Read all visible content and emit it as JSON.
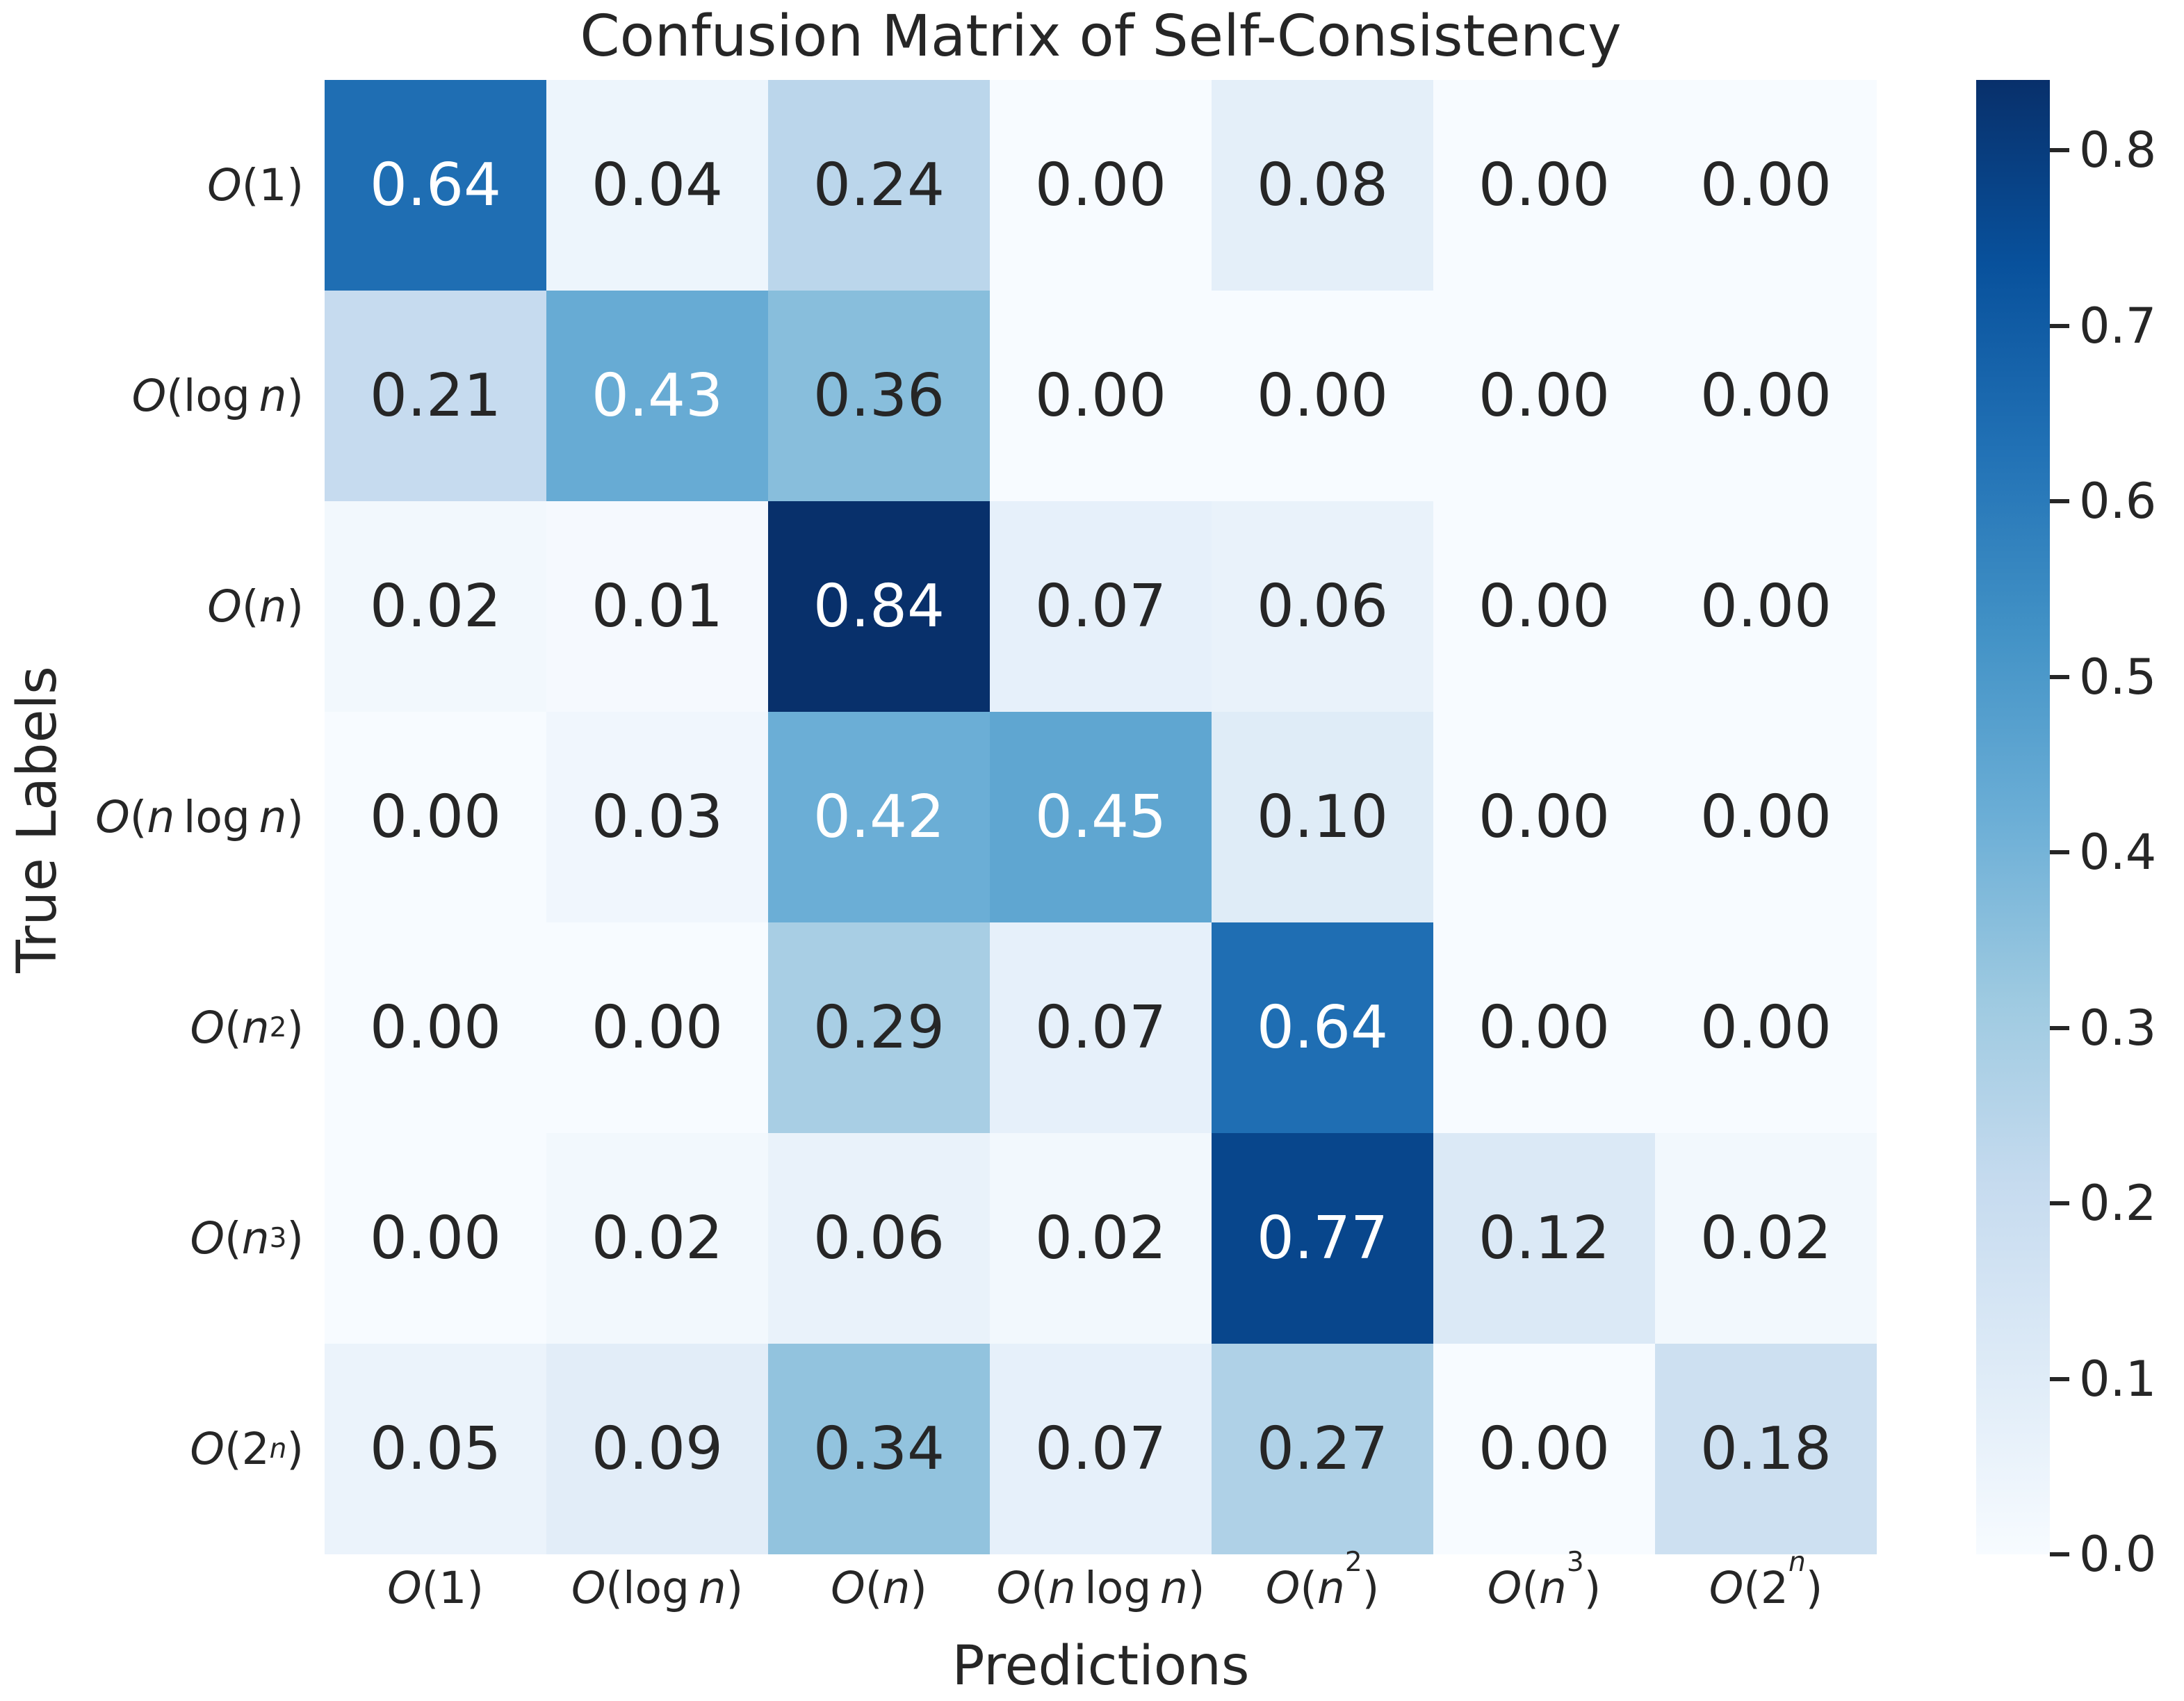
{
  "chart_data": {
    "type": "heatmap",
    "title": "Confusion Matrix of Self-Consistency",
    "xlabel": "Predictions",
    "ylabel": "True Labels",
    "categories": [
      "O(1)",
      "O(log n)",
      "O(n)",
      "O(n log n)",
      "O(n^2)",
      "O(n^3)",
      "O(2^n)"
    ],
    "rows": [
      {
        "label": "O(1)",
        "values": [
          0.64,
          0.04,
          0.24,
          0.0,
          0.08,
          0.0,
          0.0
        ]
      },
      {
        "label": "O(log n)",
        "values": [
          0.21,
          0.43,
          0.36,
          0.0,
          0.0,
          0.0,
          0.0
        ]
      },
      {
        "label": "O(n)",
        "values": [
          0.02,
          0.01,
          0.84,
          0.07,
          0.06,
          0.0,
          0.0
        ]
      },
      {
        "label": "O(n log n)",
        "values": [
          0.0,
          0.03,
          0.42,
          0.45,
          0.1,
          0.0,
          0.0
        ]
      },
      {
        "label": "O(n^2)",
        "values": [
          0.0,
          0.0,
          0.29,
          0.07,
          0.64,
          0.0,
          0.0
        ]
      },
      {
        "label": "O(n^3)",
        "values": [
          0.0,
          0.02,
          0.06,
          0.02,
          0.77,
          0.12,
          0.02
        ]
      },
      {
        "label": "O(2^n)",
        "values": [
          0.05,
          0.09,
          0.34,
          0.07,
          0.27,
          0.0,
          0.18
        ]
      }
    ],
    "value_decimals": 2,
    "vmin": 0.0,
    "vmax": 0.84,
    "colormap": "Blues",
    "colormap_anchors": [
      "#f7fbff",
      "#deebf7",
      "#c6dbef",
      "#9ecae1",
      "#6baed6",
      "#4292c6",
      "#2171b5",
      "#08519c",
      "#08306b"
    ],
    "colorbar_ticks": [
      "0.8",
      "0.7",
      "0.6",
      "0.5",
      "0.4",
      "0.3",
      "0.2",
      "0.1",
      "0.0"
    ],
    "annotation_color_dark": "#262626",
    "annotation_color_light": "#ffffff",
    "grid": false,
    "legend_position": "colorbar-right"
  }
}
